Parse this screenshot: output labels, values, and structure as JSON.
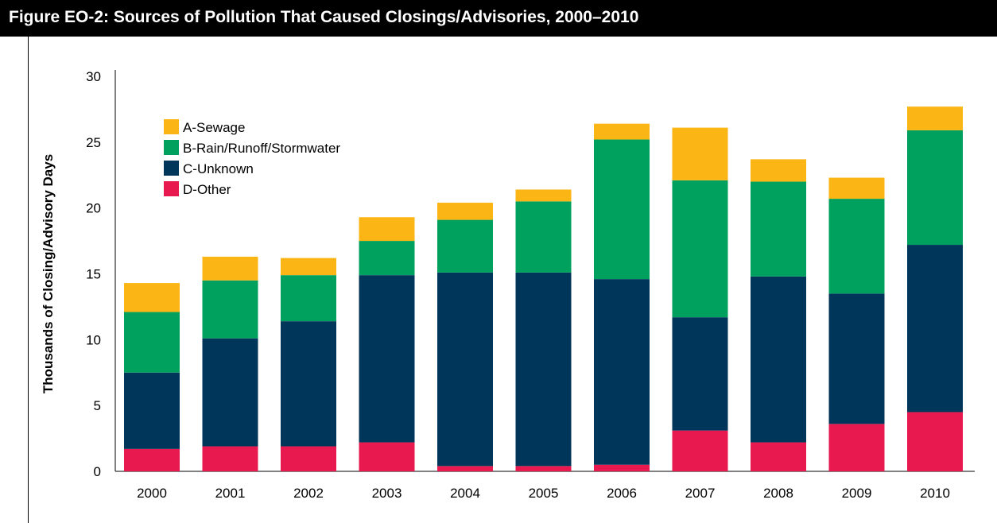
{
  "figure": {
    "title": "Figure EO-2: Sources of Pollution That Caused Closings/Advisories, 2000–2010"
  },
  "chart_data": {
    "type": "bar",
    "stacked": true,
    "title": "Figure EO-2: Sources of Pollution That Caused Closings/Advisories, 2000–2010",
    "xlabel": "",
    "ylabel": "Thousands of Closing/Advisory Days",
    "ylim": [
      0,
      30
    ],
    "yticks": [
      0,
      5,
      10,
      15,
      20,
      25,
      30
    ],
    "grid": false,
    "legend_position": "top-left",
    "categories": [
      "2000",
      "2001",
      "2002",
      "2003",
      "2004",
      "2005",
      "2006",
      "2007",
      "2008",
      "2009",
      "2010"
    ],
    "series": [
      {
        "name": "D-Other",
        "color": "#e8194f",
        "values": [
          1.7,
          1.9,
          1.9,
          2.2,
          0.4,
          0.4,
          0.5,
          3.1,
          2.2,
          3.6,
          4.5
        ]
      },
      {
        "name": "C-Unknown",
        "color": "#00365a",
        "values": [
          5.8,
          8.2,
          9.5,
          12.7,
          14.7,
          14.7,
          14.1,
          8.6,
          12.6,
          9.9,
          12.7
        ]
      },
      {
        "name": "B-Rain/Runoff/Stormwater",
        "color": "#00a15f",
        "values": [
          4.6,
          4.4,
          3.5,
          2.6,
          4.0,
          5.4,
          10.6,
          10.4,
          7.2,
          7.2,
          8.7
        ]
      },
      {
        "name": "A-Sewage",
        "color": "#fbb514",
        "values": [
          2.2,
          1.8,
          1.3,
          1.8,
          1.3,
          0.9,
          1.2,
          4.0,
          1.7,
          1.6,
          1.8
        ]
      }
    ],
    "legend_order": [
      "A-Sewage",
      "B-Rain/Runoff/Stormwater",
      "C-Unknown",
      "D-Other"
    ]
  }
}
